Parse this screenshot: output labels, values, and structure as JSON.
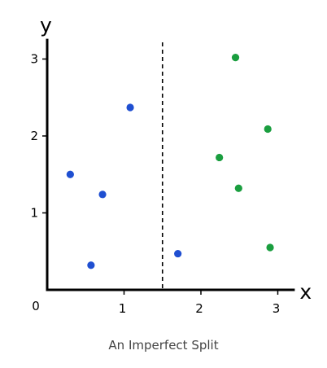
{
  "chart_data": {
    "type": "scatter",
    "title": "An Imperfect Split",
    "xlabel": "x",
    "ylabel": "y",
    "xlim": [
      0,
      3.2
    ],
    "ylim": [
      0,
      3.2
    ],
    "x_ticks": [
      0,
      1,
      2,
      3
    ],
    "y_ticks": [
      1,
      2,
      3
    ],
    "grid": false,
    "legend": "none",
    "divider": {
      "x": 1.5,
      "style": "dashed",
      "color": "#000000"
    },
    "series": [
      {
        "color": "#1f4fd1",
        "points": [
          {
            "x": 1.08,
            "y": 2.37
          },
          {
            "x": 0.3,
            "y": 1.5
          },
          {
            "x": 0.72,
            "y": 1.24
          },
          {
            "x": 0.57,
            "y": 0.32
          },
          {
            "x": 1.7,
            "y": 0.47
          }
        ]
      },
      {
        "color": "#1a9e3f",
        "points": [
          {
            "x": 2.45,
            "y": 3.02
          },
          {
            "x": 2.87,
            "y": 2.09
          },
          {
            "x": 2.24,
            "y": 1.72
          },
          {
            "x": 2.49,
            "y": 1.32
          },
          {
            "x": 2.9,
            "y": 0.55
          }
        ]
      }
    ]
  }
}
